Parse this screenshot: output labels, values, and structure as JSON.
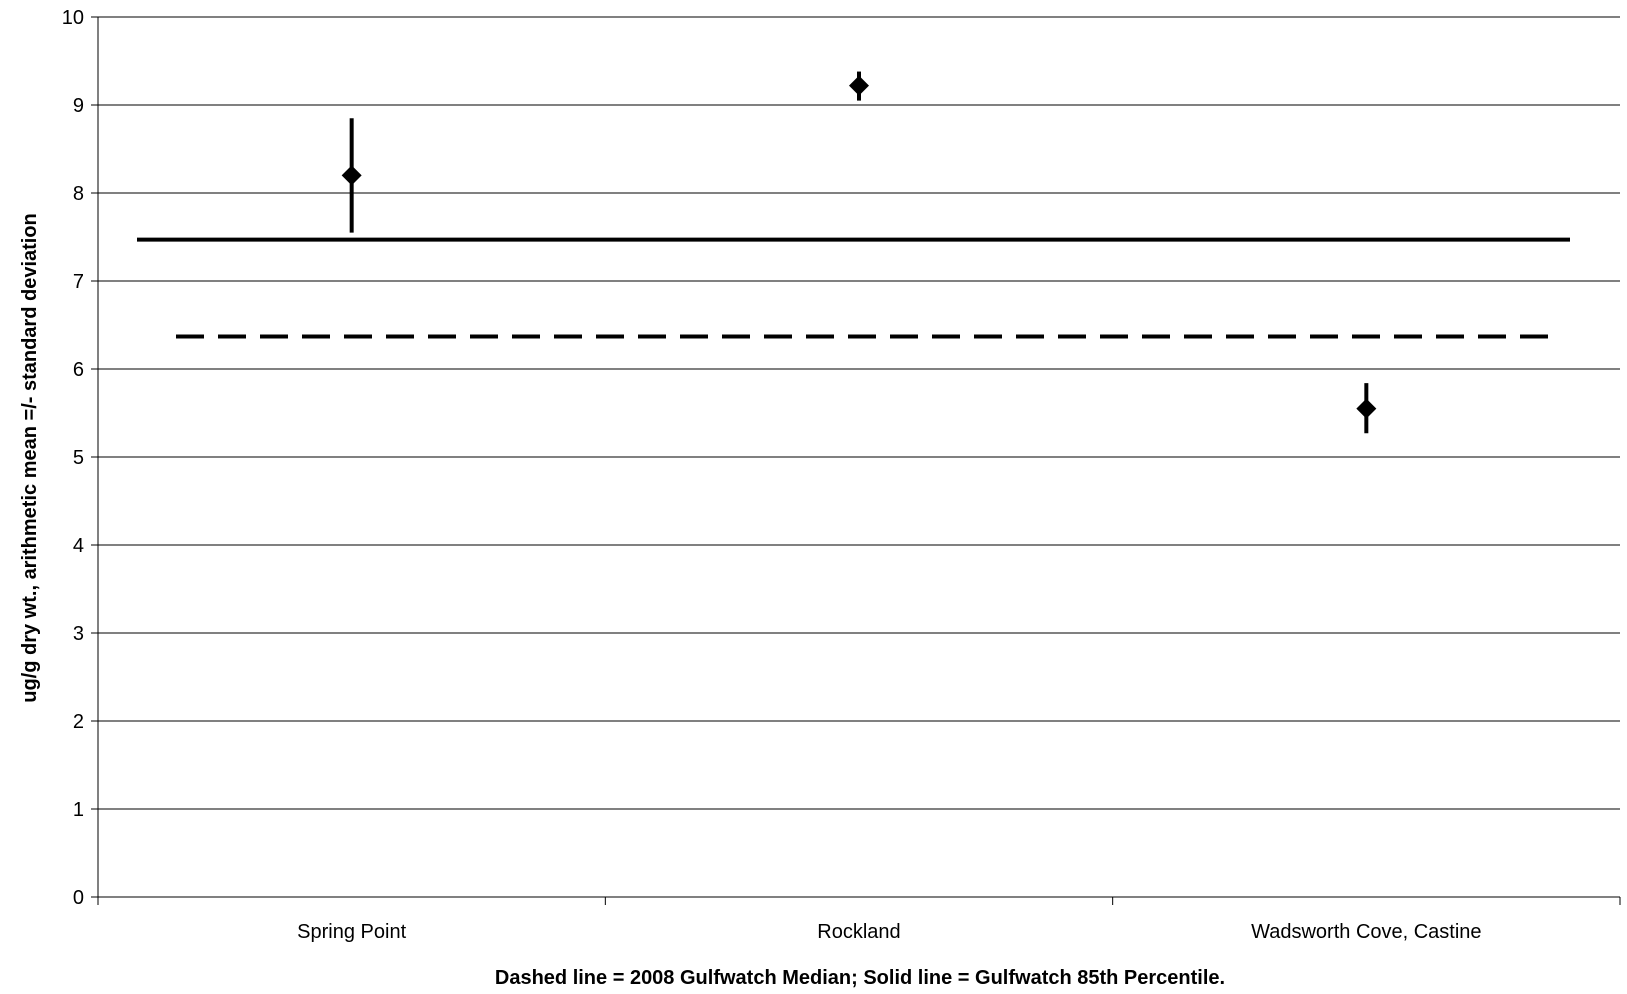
{
  "chart_data": {
    "type": "scatter",
    "title": "",
    "xlabel": "Dashed line = 2008 Gulfwatch Median; Solid line = Gulfwatch 85th Percentile.",
    "ylabel": "ug/g dry wt., arithmetic mean =/- standard deviation",
    "ylim": [
      0,
      10
    ],
    "yticks": [
      "0",
      "1",
      "2",
      "3",
      "4",
      "5",
      "6",
      "7",
      "8",
      "9",
      "10"
    ],
    "grid": true,
    "categories": [
      "Spring Point",
      "Rockland",
      "Wadsworth Cove, Castine"
    ],
    "series": [
      {
        "values": [
          8.2,
          9.22,
          5.55
        ],
        "error_low": [
          7.55,
          9.05,
          5.27
        ],
        "error_high": [
          8.85,
          9.38,
          5.84
        ]
      }
    ],
    "reference_lines": [
      {
        "style": "dashed",
        "value": 6.37
      },
      {
        "style": "solid",
        "value": 7.47
      }
    ],
    "colors": {
      "line": "#000000",
      "grid": "#000000",
      "background": "#ffffff"
    }
  }
}
